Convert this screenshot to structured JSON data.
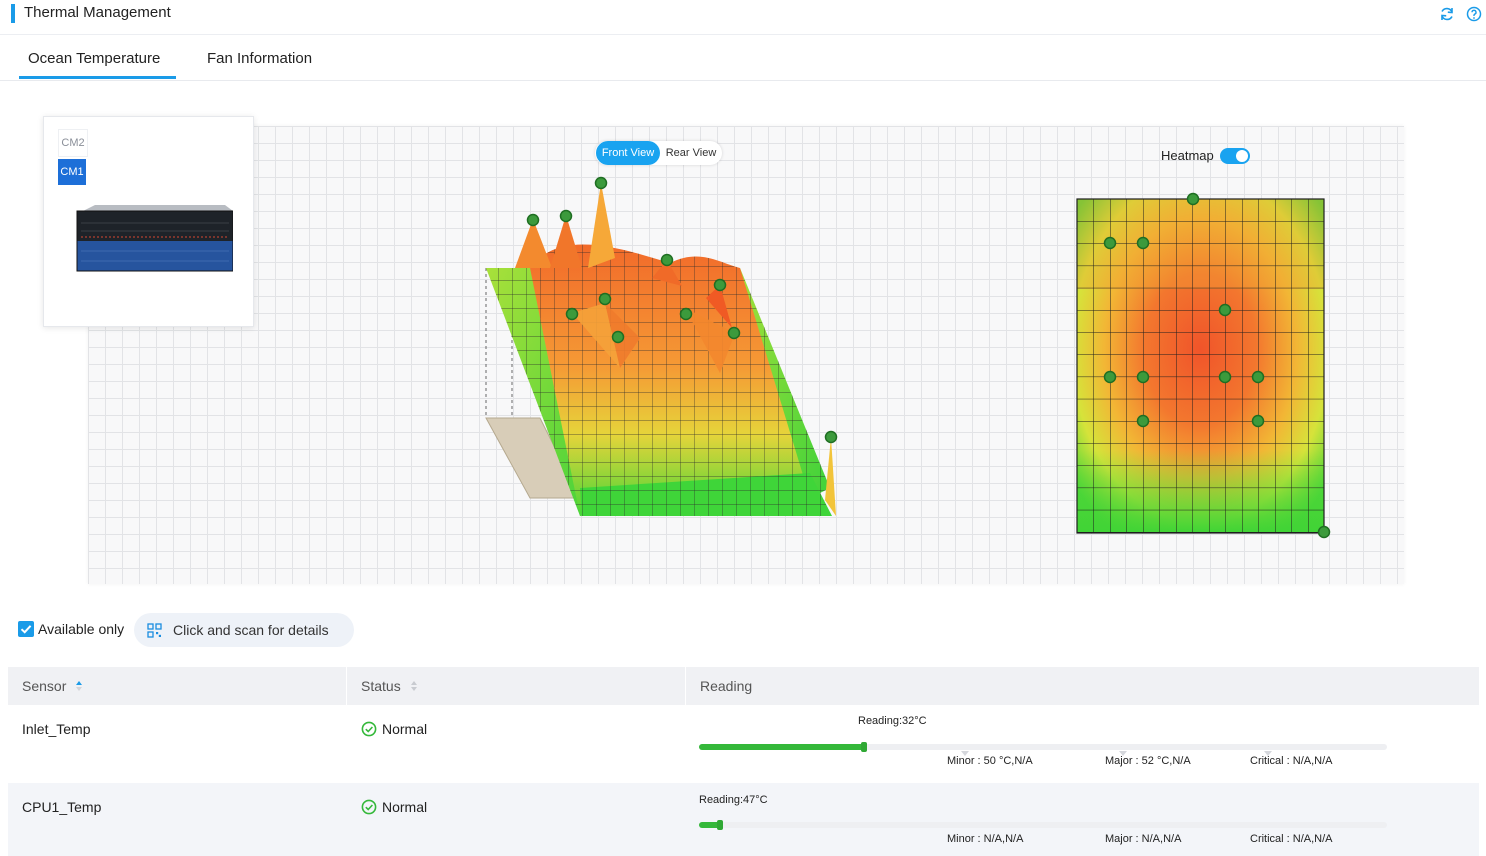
{
  "header": {
    "title": "Thermal Management",
    "refresh_icon": "refresh-icon",
    "help_icon": "help-icon",
    "accent_color": "#1a9be8"
  },
  "tabs": [
    {
      "label": "Ocean Temperature",
      "active": true
    },
    {
      "label": "Fan Information",
      "active": false
    }
  ],
  "device": {
    "modules": [
      {
        "label": "CM2",
        "selected": false
      },
      {
        "label": "CM1",
        "selected": true
      }
    ]
  },
  "view_toggle": {
    "front": "Front View",
    "rear": "Rear View",
    "selected": "Front View"
  },
  "heatmap": {
    "label": "Heatmap",
    "enabled": true
  },
  "filters": {
    "available_only_label": "Available only",
    "available_only_checked": true,
    "scan_label": "Click and scan for details"
  },
  "table": {
    "columns": [
      {
        "label": "Sensor",
        "sortable": true
      },
      {
        "label": "Status",
        "sortable": true
      },
      {
        "label": "Reading",
        "sortable": false
      }
    ],
    "rows": [
      {
        "sensor": "Inlet_Temp",
        "status": "Normal",
        "reading": "Reading:32°C",
        "reading_fraction": 0.24,
        "minor": "Minor : 50 °C,N/A",
        "major": "Major : 52 °C,N/A",
        "critical": "Critical : N/A,N/A"
      },
      {
        "sensor": "CPU1_Temp",
        "status": "Normal",
        "reading": "Reading:47°C",
        "reading_fraction": 0.03,
        "minor": "Minor : N/A,N/A",
        "major": "Major : N/A,N/A",
        "critical": "Critical : N/A,N/A"
      }
    ]
  },
  "colors": {
    "normal": "#34b83a",
    "primary": "#1a9be8"
  }
}
